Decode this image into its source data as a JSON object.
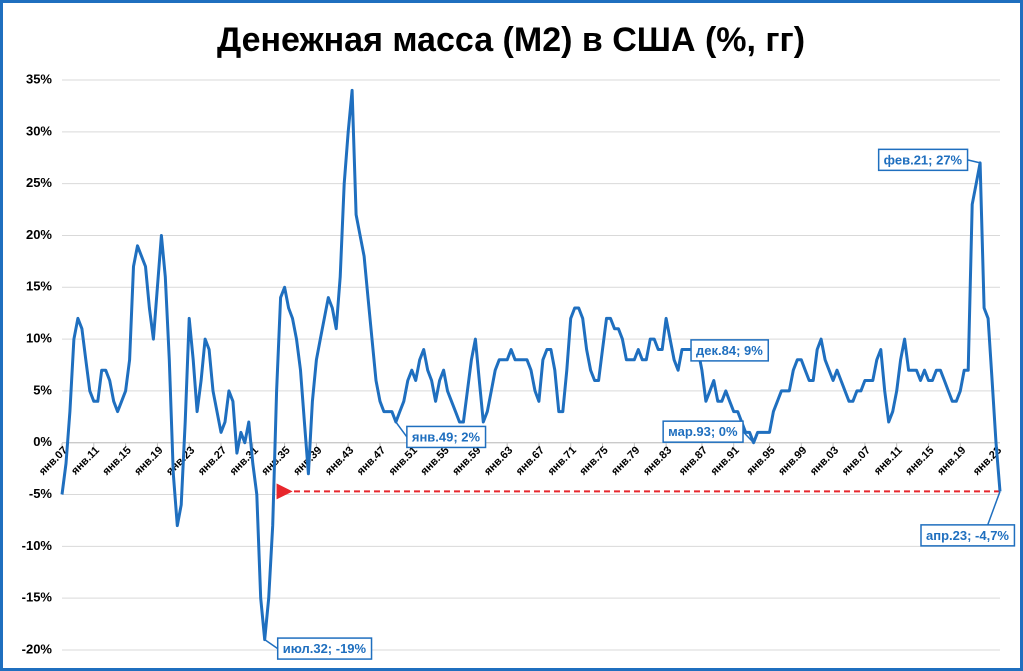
{
  "chart_data": {
    "type": "line",
    "title": "Денежная масса (М2) в США (%, гг)",
    "color": "#1f6fbf",
    "grid": true,
    "ylim": [
      -20,
      35
    ],
    "yticks": [
      {
        "value": -20,
        "label": "-20%"
      },
      {
        "value": -15,
        "label": "-15%"
      },
      {
        "value": -10,
        "label": "-10%"
      },
      {
        "value": -5,
        "label": "-5%"
      },
      {
        "value": 0,
        "label": "0%"
      },
      {
        "value": 5,
        "label": "5%"
      },
      {
        "value": 10,
        "label": "10%"
      },
      {
        "value": 15,
        "label": "15%"
      },
      {
        "value": 20,
        "label": "20%"
      },
      {
        "value": 25,
        "label": "25%"
      },
      {
        "value": 30,
        "label": "30%"
      },
      {
        "value": 35,
        "label": "35%"
      }
    ],
    "categories": [
      "янв.07",
      null,
      null,
      null,
      null,
      null,
      null,
      null,
      "янв.11",
      null,
      null,
      null,
      null,
      null,
      null,
      null,
      "янв.15",
      null,
      null,
      null,
      null,
      null,
      null,
      null,
      "янв.19",
      null,
      null,
      null,
      null,
      null,
      null,
      null,
      "янв.23",
      null,
      null,
      null,
      null,
      null,
      null,
      null,
      "янв.27",
      null,
      null,
      null,
      null,
      null,
      null,
      null,
      "янв.31",
      null,
      null,
      null,
      null,
      null,
      null,
      null,
      "янв.35",
      null,
      null,
      null,
      null,
      null,
      null,
      null,
      "янв.39",
      null,
      null,
      null,
      null,
      null,
      null,
      null,
      "янв.43",
      null,
      null,
      null,
      null,
      null,
      null,
      null,
      "янв.47",
      null,
      null,
      null,
      null,
      null,
      null,
      null,
      "янв.51",
      null,
      null,
      null,
      null,
      null,
      null,
      null,
      "янв.55",
      null,
      null,
      null,
      null,
      null,
      null,
      null,
      "янв.59",
      null,
      null,
      null,
      null,
      null,
      null,
      null,
      "янв.63",
      null,
      null,
      null,
      null,
      null,
      null,
      null,
      "янв.67",
      null,
      null,
      null,
      null,
      null,
      null,
      null,
      "янв.71",
      null,
      null,
      null,
      null,
      null,
      null,
      null,
      "янв.75",
      null,
      null,
      null,
      null,
      null,
      null,
      null,
      "янв.79",
      null,
      null,
      null,
      null,
      null,
      null,
      null,
      "янв.83",
      null,
      null,
      null,
      null,
      null,
      null,
      null,
      null,
      "янв.87",
      null,
      null,
      null,
      null,
      null,
      null,
      null,
      "янв.91",
      null,
      null,
      null,
      null,
      null,
      null,
      null,
      null,
      "янв.95",
      null,
      null,
      null,
      null,
      null,
      null,
      null,
      "янв.99",
      null,
      null,
      null,
      null,
      null,
      null,
      null,
      "янв.03",
      null,
      null,
      null,
      null,
      null,
      null,
      null,
      "янв.07",
      null,
      null,
      null,
      null,
      null,
      null,
      null,
      "янв.11",
      null,
      null,
      null,
      null,
      null,
      null,
      null,
      "янв.15",
      null,
      null,
      null,
      null,
      null,
      null,
      null,
      "янв.19",
      null,
      null,
      null,
      null,
      null,
      null,
      null,
      null,
      "янв.23",
      null
    ],
    "values": [
      -5,
      -2,
      3,
      10,
      12,
      11,
      8,
      5,
      4,
      4,
      7,
      7,
      6,
      4,
      3,
      4,
      5,
      8,
      17,
      19,
      18,
      17,
      13,
      10,
      15,
      20,
      16,
      8,
      -3,
      -8,
      -6,
      2,
      12,
      8,
      3,
      6,
      10,
      9,
      5,
      3,
      1,
      2,
      5,
      4,
      -1,
      1,
      0,
      2,
      -2,
      -5,
      -15,
      -19,
      -15,
      -8,
      5,
      14,
      15,
      13,
      12,
      10,
      7,
      2,
      -3,
      4,
      8,
      10,
      12,
      14,
      13,
      11,
      16,
      25,
      30,
      34,
      22,
      20,
      18,
      14,
      10,
      6,
      4,
      3,
      3,
      3,
      2,
      3,
      4,
      6,
      7,
      6,
      8,
      9,
      7,
      6,
      4,
      6,
      7,
      5,
      4,
      3,
      2,
      2,
      5,
      8,
      10,
      6,
      2,
      3,
      5,
      7,
      8,
      8,
      8,
      9,
      8,
      8,
      8,
      8,
      7,
      5,
      4,
      8,
      9,
      9,
      7,
      3,
      3,
      7,
      12,
      13,
      13,
      12,
      9,
      7,
      6,
      6,
      9,
      12,
      12,
      11,
      11,
      10,
      8,
      8,
      8,
      9,
      8,
      8,
      10,
      10,
      9,
      9,
      12,
      10,
      8,
      7,
      9,
      9,
      9,
      9,
      9,
      7,
      4,
      5,
      6,
      4,
      4,
      5,
      4,
      3,
      3,
      2,
      1,
      1,
      0,
      1,
      1,
      1,
      1,
      3,
      4,
      5,
      5,
      5,
      7,
      8,
      8,
      7,
      6,
      6,
      9,
      10,
      8,
      7,
      6,
      7,
      6,
      5,
      4,
      4,
      5,
      5,
      6,
      6,
      6,
      8,
      9,
      5,
      2,
      3,
      5,
      8,
      10,
      7,
      7,
      7,
      6,
      7,
      6,
      6,
      7,
      7,
      6,
      5,
      4,
      4,
      5,
      7,
      7,
      23,
      25,
      27,
      13,
      12,
      6,
      0,
      -4.7
    ],
    "value_labels": [
      null,
      null,
      null,
      null,
      null,
      null,
      null,
      null,
      null,
      null,
      null,
      null,
      null,
      null,
      null,
      null,
      null,
      null,
      null,
      null,
      null,
      null,
      null,
      null,
      null,
      null,
      null,
      null,
      null,
      null,
      null,
      null,
      null,
      null,
      null,
      null,
      null,
      null,
      null,
      null,
      null,
      null,
      null,
      null,
      null,
      null,
      null,
      null,
      null,
      null,
      null,
      "июл.32; -19%",
      null,
      null,
      null,
      null,
      null,
      null,
      null,
      null,
      null,
      null,
      null,
      null,
      null,
      null,
      null,
      null,
      null,
      null,
      null,
      null,
      null,
      null,
      null,
      null,
      null,
      null,
      null,
      null,
      null,
      null,
      null,
      null,
      "янв.49; 2%",
      null,
      null,
      null,
      null,
      null,
      null,
      null,
      null,
      null,
      null,
      null,
      null,
      null,
      null,
      null,
      null,
      null,
      null,
      null,
      null,
      null,
      null,
      null,
      null,
      null,
      null,
      null,
      null,
      null,
      null,
      null,
      null,
      null,
      null,
      null,
      null,
      null,
      null,
      null,
      null,
      null,
      null,
      null,
      null,
      null,
      null,
      null,
      null,
      null,
      null,
      null,
      null,
      null,
      null,
      null,
      null,
      null,
      null,
      null,
      null,
      null,
      null,
      null,
      null,
      null,
      null,
      null,
      null,
      null,
      null,
      null,
      "дек.84; 9%",
      null,
      null,
      null,
      null,
      null,
      null,
      null,
      null,
      null,
      null,
      null,
      null,
      null,
      null,
      null,
      null,
      null,
      "мар.93; 0%",
      null,
      null,
      null,
      null,
      null,
      null,
      null,
      null,
      null,
      null,
      null,
      null,
      null,
      null,
      null,
      null,
      null,
      null,
      null,
      null,
      null,
      null,
      null,
      null,
      null,
      null,
      null,
      null,
      null,
      null,
      null,
      null,
      null,
      null,
      null,
      null,
      null,
      null,
      null,
      null,
      null,
      null,
      null,
      null,
      null,
      null,
      null,
      null,
      null,
      null,
      null,
      null,
      null,
      null,
      null,
      null,
      "фев.21; 27%",
      null,
      null,
      null,
      null,
      "апр.23; -4,7%"
    ]
  }
}
